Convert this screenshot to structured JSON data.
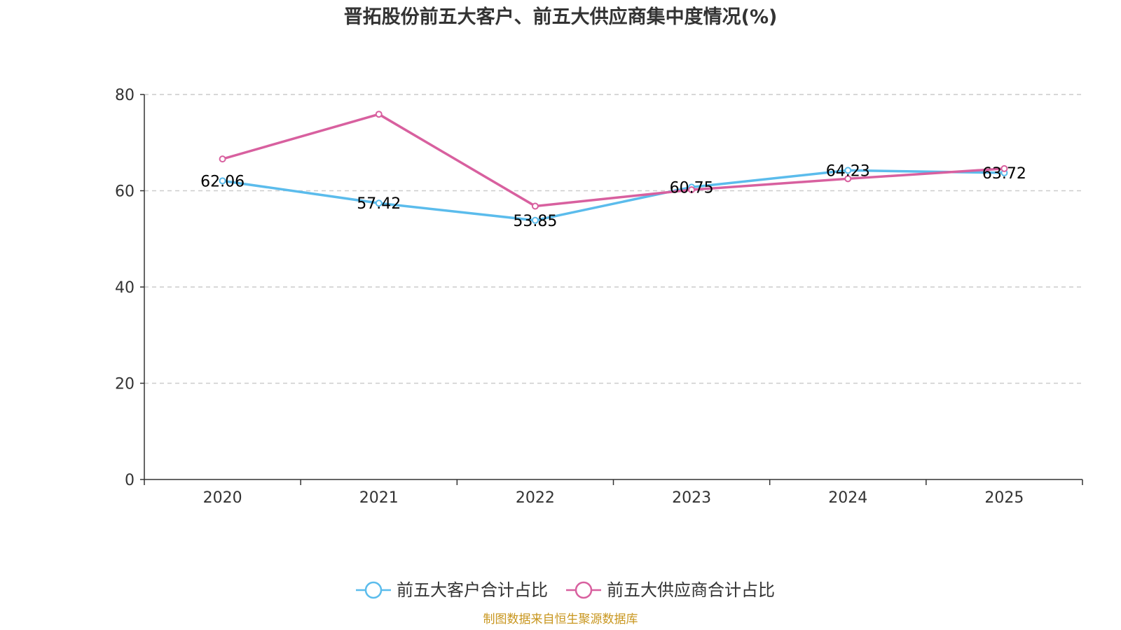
{
  "chart_data": {
    "type": "line",
    "title": "晋拓股份前五大客户、前五大供应商集中度情况(%)",
    "categories": [
      "2020",
      "2021",
      "2022",
      "2023",
      "2024",
      "2025"
    ],
    "ylim": [
      0,
      80
    ],
    "yticks": [
      0,
      20,
      40,
      60,
      80
    ],
    "grid": true,
    "legend_position": "bottom-center",
    "xlabel": "",
    "ylabel": "",
    "series": [
      {
        "name": "前五大客户合计占比",
        "color": "#5bbcec",
        "values": [
          62.06,
          57.42,
          53.85,
          60.75,
          64.23,
          63.72
        ],
        "data_labels": [
          "62.06",
          "57.42",
          "53.85",
          "60.75",
          "64.23",
          "63.72"
        ]
      },
      {
        "name": "前五大供应商合计占比",
        "color": "#d8609f",
        "values": [
          66.6,
          75.9,
          56.8,
          60.2,
          62.5,
          64.6
        ],
        "data_labels": []
      }
    ],
    "source": "制图数据来自恒生聚源数据库"
  }
}
